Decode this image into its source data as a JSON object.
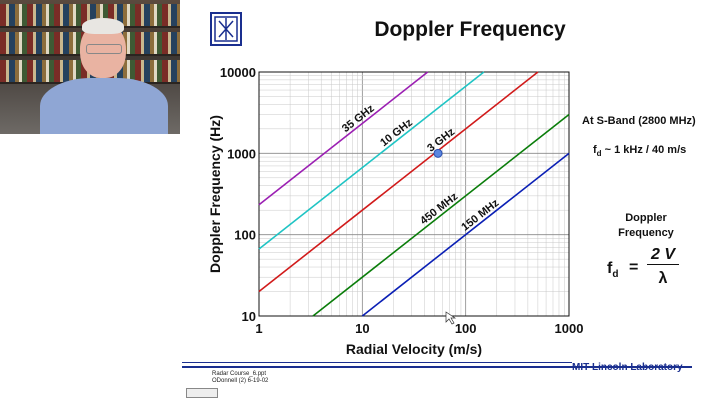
{
  "slide": {
    "title": "Doppler Frequency",
    "annotation_band": "At S-Band (2800 MHz)",
    "annotation_rule_prefix": "f",
    "annotation_rule_sub": "d",
    "annotation_rule_rest": " ~ 1 kHz / 40 m/s",
    "eq_label_line1": "Doppler",
    "eq_label_line2": "Frequency",
    "eq_lhs": "f",
    "eq_lhs_sub": "d",
    "eq_equals": "=",
    "eq_numerator": "2 V",
    "eq_denominator": "λ",
    "footer_org": "MIT Lincoln Laboratory",
    "footer_file": "Radar Course_6.ppt",
    "footer_author": "ODonnell (2) 6-19-02"
  },
  "colors": {
    "accent_blue": "#1a2f8f"
  },
  "chart_data": {
    "type": "line",
    "xlabel": "Radial Velocity (m/s)",
    "ylabel": "Doppler Frequency (Hz)",
    "xscale": "log",
    "yscale": "log",
    "xlim": [
      1,
      1000
    ],
    "ylim": [
      10,
      10000
    ],
    "x_ticks": [
      "1",
      "10",
      "100",
      "1000"
    ],
    "y_ticks": [
      "10",
      "100",
      "1000",
      "10000"
    ],
    "grid": true,
    "series": [
      {
        "name": "35 GHz",
        "color": "#9b1fb3",
        "x": [
          1,
          42.9
        ],
        "y": [
          233,
          10000
        ]
      },
      {
        "name": "10 GHz",
        "color": "#1fc4c4",
        "x": [
          1,
          150
        ],
        "y": [
          66.7,
          10000
        ]
      },
      {
        "name": "3 GHz",
        "color": "#d11a1a",
        "x": [
          1,
          500
        ],
        "y": [
          20,
          10000
        ]
      },
      {
        "name": "450 MHz",
        "color": "#0a7d0a",
        "x": [
          3.33,
          1000
        ],
        "y": [
          10,
          3000
        ]
      },
      {
        "name": "150 MHz",
        "color": "#0a1fb5",
        "x": [
          10,
          1000
        ],
        "y": [
          10,
          1000
        ]
      }
    ],
    "marker": {
      "x": 54,
      "y": 1000,
      "color": "#5a86e0"
    }
  }
}
